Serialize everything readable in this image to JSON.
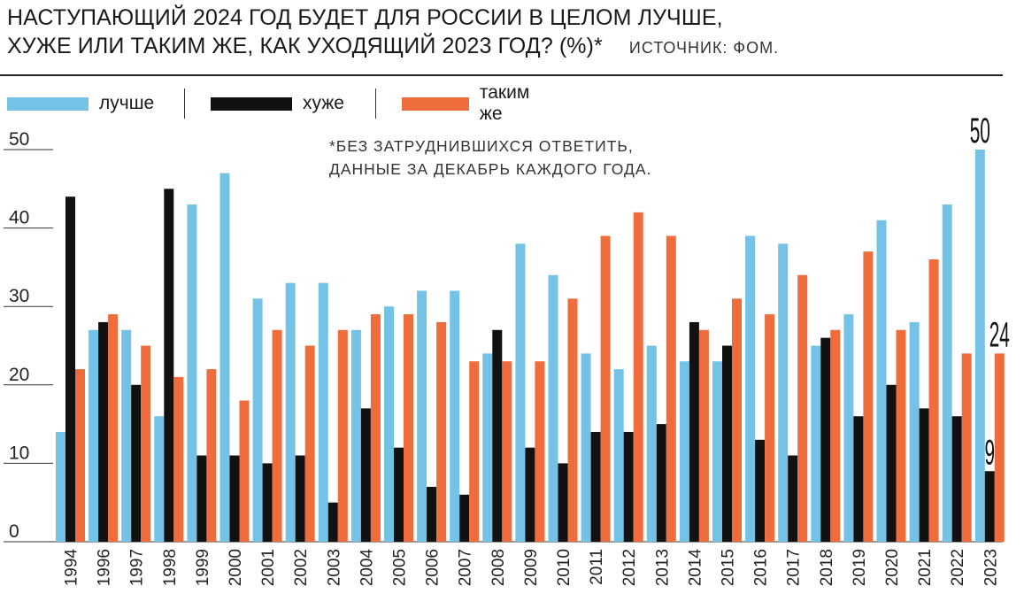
{
  "title_line1": "НАСТУПАЮЩИЙ 2024 ГОД БУДЕТ ДЛЯ РОССИИ В ЦЕЛОМ ЛУЧШЕ,",
  "title_line2": "ХУЖЕ ИЛИ ТАКИМ ЖЕ, КАК УХОДЯЩИЙ 2023 ГОД? (%)*",
  "source": "ИСТОЧНИК: ФОМ.",
  "note_line1": "*БЕЗ ЗАТРУДНИВШИХСЯ ОТВЕТИТЬ,",
  "note_line2": "ДАННЫЕ ЗА ДЕКАБРЬ КАЖДОГО ГОДА.",
  "legend": [
    {
      "label": "лучше",
      "color": "#74c3e6"
    },
    {
      "label": "хуже",
      "color": "#111111"
    },
    {
      "label": "таким же",
      "color": "#ef6c3c"
    }
  ],
  "chart_data": {
    "type": "bar",
    "categories": [
      "1994",
      "1996",
      "1997",
      "1998",
      "1999",
      "2000",
      "2001",
      "2002",
      "2003",
      "2004",
      "2005",
      "2006",
      "2007",
      "2008",
      "2009",
      "2010",
      "2011",
      "2012",
      "2013",
      "2014",
      "2015",
      "2016",
      "2017",
      "2018",
      "2019",
      "2020",
      "2021",
      "2022",
      "2023"
    ],
    "series": [
      {
        "name": "лучше",
        "color": "#74c3e6",
        "values": [
          14,
          27,
          27,
          16,
          43,
          47,
          31,
          33,
          33,
          27,
          30,
          32,
          32,
          24,
          38,
          34,
          24,
          22,
          25,
          23,
          23,
          39,
          38,
          25,
          29,
          41,
          28,
          43,
          50
        ]
      },
      {
        "name": "хуже",
        "color": "#111111",
        "values": [
          44,
          28,
          20,
          45,
          11,
          11,
          10,
          11,
          5,
          17,
          12,
          7,
          6,
          27,
          12,
          10,
          14,
          14,
          15,
          28,
          25,
          13,
          11,
          26,
          16,
          20,
          17,
          16,
          9
        ]
      },
      {
        "name": "таким же",
        "color": "#ef6c3c",
        "values": [
          22,
          29,
          25,
          21,
          22,
          18,
          27,
          25,
          27,
          29,
          29,
          28,
          23,
          23,
          23,
          31,
          39,
          42,
          39,
          27,
          31,
          29,
          34,
          27,
          37,
          27,
          36,
          24,
          24
        ]
      }
    ],
    "yticks": [
      0,
      10,
      20,
      30,
      40,
      50
    ],
    "ylim": [
      0,
      52
    ],
    "grid": false,
    "value_labels": {
      "лучше": "50",
      "хуже": "9",
      "таким же": "24"
    }
  }
}
